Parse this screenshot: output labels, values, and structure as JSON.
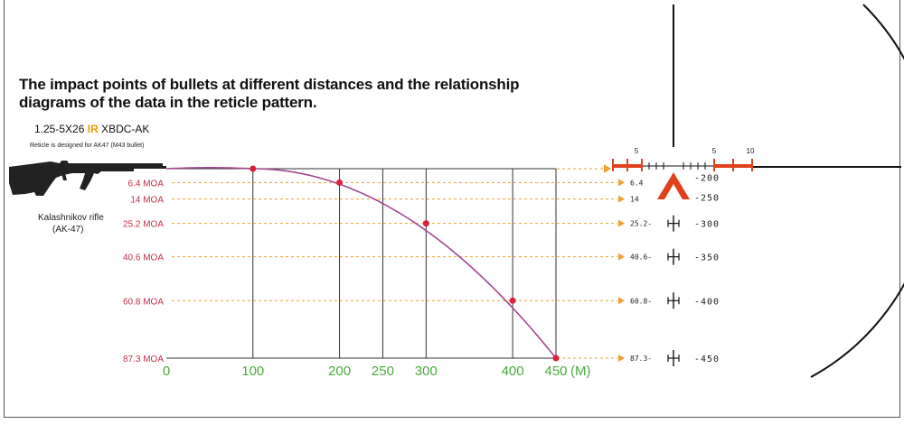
{
  "header": {
    "title": "The impact points of bullets at different distances and the relationship diagrams of the data in the reticle pattern.",
    "model_prefix": "1.25-5X26",
    "model_ir": "IR",
    "model_suffix": "XBDC-AK",
    "note": "Reticle is designed for AK47 (M43 bullet)"
  },
  "rifle": {
    "caption_line1": "Kalashnikov rifle",
    "caption_line2": "(AK-47)",
    "icon": "ak47-silhouette-icon"
  },
  "colors": {
    "curve": "#a3478f",
    "points": "#d9213a",
    "moa_text": "#c0304a",
    "x_tick_text": "#4aaa3c",
    "guide_lines": "#f0a030",
    "reticle_red": "#e0401c"
  },
  "chart_data": {
    "type": "line",
    "title": "",
    "xlabel": "(M)",
    "ylabel": "",
    "x_ticks": [
      0,
      100,
      200,
      250,
      300,
      400,
      450
    ],
    "x": [
      100,
      200,
      300,
      400,
      450
    ],
    "drop_moa": [
      0,
      6.4,
      25.2,
      60.8,
      87.3
    ],
    "moa_labels": [
      "6.4 MOA",
      "14 MOA",
      "25.2 MOA",
      "40.6 MOA",
      "60.8 MOA",
      "87.3 MOA"
    ],
    "moa_values": [
      6.4,
      14,
      25.2,
      40.6,
      60.8,
      87.3
    ],
    "xlim": [
      0,
      450
    ],
    "ylim": [
      0,
      87.3
    ],
    "y_inverted": true,
    "grid": true
  },
  "reticle": {
    "moa_labels": [
      "6.4",
      "14",
      "25.2",
      "40.6",
      "60.8",
      "87.3"
    ],
    "range_labels": [
      "200",
      "250",
      "300",
      "350",
      "400",
      "450"
    ],
    "top_scale_left": "5",
    "top_scale_right": [
      "5",
      "10"
    ]
  }
}
